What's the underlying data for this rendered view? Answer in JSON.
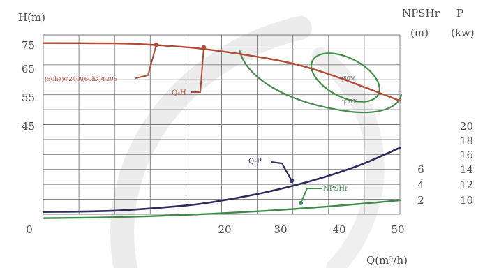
{
  "chart_data": {
    "type": "line",
    "title": "",
    "axes": {
      "x": {
        "label": "Q(m³/h)",
        "ticks": [
          "0",
          "20",
          "30",
          "40",
          "50"
        ],
        "range": [
          0,
          50
        ]
      },
      "y_left": {
        "label": "H(m)",
        "ticks": [
          "75",
          "65",
          "55",
          "45"
        ],
        "range": [
          20,
          75
        ]
      },
      "y_npshr": {
        "label": "NPSHr",
        "unit": "(m)",
        "ticks": [
          "6",
          "4",
          "2"
        ]
      },
      "y_power": {
        "label": "P",
        "unit": "(kw)",
        "ticks": [
          "20",
          "18",
          "16",
          "14",
          "12",
          "10"
        ]
      }
    },
    "grid": true,
    "series": [
      {
        "name": "Q-H",
        "color": "#b24a35",
        "x": [
          0,
          10,
          15,
          22,
          30,
          35,
          40,
          45,
          50
        ],
        "y": [
          72.5,
          72.4,
          72,
          70.8,
          68.3,
          66.2,
          63,
          59,
          54.8
        ]
      },
      {
        "name": "Q-P",
        "color": "#2e2a5c",
        "x": [
          0,
          10,
          20,
          25,
          30,
          35,
          40,
          45,
          50
        ],
        "y": [
          20.7,
          21.1,
          22.7,
          24.2,
          26.2,
          28.7,
          31.8,
          35.6,
          40.4
        ]
      },
      {
        "name": "NPSHr",
        "color": "#3d8a4a",
        "x": [
          0,
          10,
          20,
          30,
          35,
          40,
          45,
          50
        ],
        "y": [
          18.8,
          19.1,
          19.8,
          20.9,
          21.6,
          22.4,
          23.3,
          24.3
        ]
      }
    ],
    "efficiency_contours": [
      {
        "label": "η50%",
        "color": "#4a8a52"
      },
      {
        "label": "η80%",
        "color": "#3f8f46"
      }
    ],
    "annotations": [
      {
        "text": "(50hz)Φ240\\(60hz)Φ205",
        "color": "#b24a35"
      }
    ]
  }
}
